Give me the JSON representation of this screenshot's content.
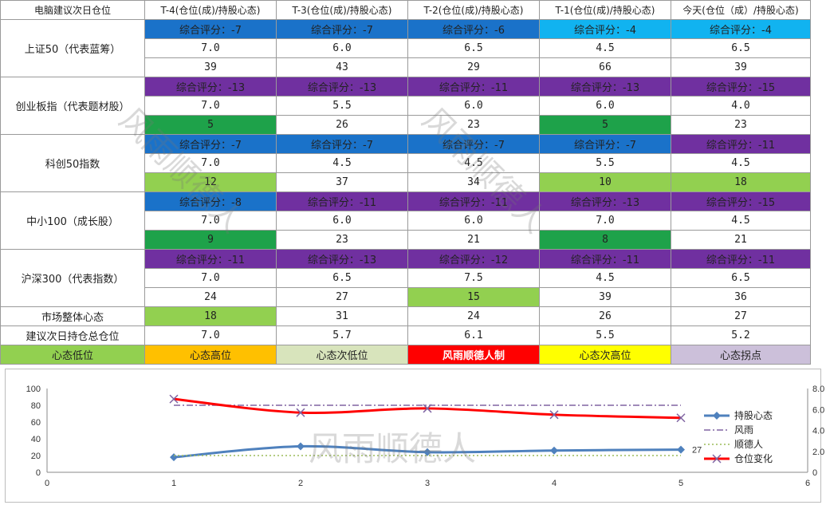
{
  "table": {
    "headers": [
      "电脑建议次日仓位",
      "T-4(仓位(成)/持股心态)",
      "T-3(仓位(成)/持股心态)",
      "T-2(仓位(成)/持股心态)",
      "T-1(仓位(成)/持股心态)",
      "今天(仓位（成）/持股心态)"
    ],
    "indices": [
      {
        "name": "上证50（代表蓝筹）",
        "scores": [
          "综合评分：-7",
          "综合评分：-7",
          "综合评分：-6",
          "综合评分：-4",
          "综合评分：-4"
        ],
        "score_colors": [
          "#1a72c9",
          "#1a72c9",
          "#1a72c9",
          "#11b3f0",
          "#11b3f0"
        ],
        "positions": [
          "7.0",
          "6.0",
          "6.5",
          "4.5",
          "6.5"
        ],
        "mood": [
          "39",
          "43",
          "29",
          "66",
          "39"
        ],
        "mood_colors": [
          "",
          "",
          "",
          "",
          ""
        ]
      },
      {
        "name": "创业板指（代表题材股）",
        "scores": [
          "综合评分：-13",
          "综合评分：-13",
          "综合评分：-11",
          "综合评分：-13",
          "综合评分：-15"
        ],
        "score_colors": [
          "#7030a0",
          "#7030a0",
          "#7030a0",
          "#7030a0",
          "#7030a0"
        ],
        "positions": [
          "7.0",
          "5.5",
          "6.0",
          "6.0",
          "4.0"
        ],
        "mood": [
          "5",
          "26",
          "23",
          "5",
          "23"
        ],
        "mood_colors": [
          "#1ea24a",
          "",
          "",
          "#1ea24a",
          ""
        ]
      },
      {
        "name": "科创50指数",
        "scores": [
          "综合评分：-7",
          "综合评分：-7",
          "综合评分：-7",
          "综合评分：-7",
          "综合评分：-11"
        ],
        "score_colors": [
          "#1a72c9",
          "#1a72c9",
          "#1a72c9",
          "#1a72c9",
          "#7030a0"
        ],
        "positions": [
          "7.0",
          "4.5",
          "4.5",
          "5.5",
          "4.5"
        ],
        "mood": [
          "12",
          "37",
          "34",
          "10",
          "18"
        ],
        "mood_colors": [
          "#92d050",
          "",
          "",
          "#92d050",
          "#92d050"
        ]
      },
      {
        "name": "中小100（成长股）",
        "scores": [
          "综合评分：-8",
          "综合评分：-11",
          "综合评分：-11",
          "综合评分：-13",
          "综合评分：-15"
        ],
        "score_colors": [
          "#1a72c9",
          "#7030a0",
          "#7030a0",
          "#7030a0",
          "#7030a0"
        ],
        "positions": [
          "7.0",
          "6.0",
          "6.0",
          "7.0",
          "4.5"
        ],
        "mood": [
          "9",
          "23",
          "21",
          "8",
          "21"
        ],
        "mood_colors": [
          "#1ea24a",
          "",
          "",
          "#1ea24a",
          ""
        ]
      },
      {
        "name": "沪深300（代表指数）",
        "scores": [
          "综合评分：-11",
          "综合评分：-13",
          "综合评分：-12",
          "综合评分：-11",
          "综合评分：-11"
        ],
        "score_colors": [
          "#7030a0",
          "#7030a0",
          "#7030a0",
          "#7030a0",
          "#7030a0"
        ],
        "positions": [
          "7.0",
          "6.5",
          "7.5",
          "4.5",
          "6.5"
        ],
        "mood": [
          "24",
          "27",
          "15",
          "39",
          "36"
        ],
        "mood_colors": [
          "",
          "",
          "#92d050",
          "",
          ""
        ]
      }
    ],
    "market_mood": {
      "label": "市场整体心态",
      "values": [
        "18",
        "31",
        "24",
        "26",
        "27"
      ],
      "colors": [
        "#92d050",
        "",
        "",
        "",
        ""
      ]
    },
    "suggested": {
      "label": "建议次日持仓总仓位",
      "values": [
        "7.0",
        "5.7",
        "6.1",
        "5.5",
        "5.2"
      ]
    },
    "legend": [
      {
        "label": "心态低位",
        "color": "#92d050"
      },
      {
        "label": "心态高位",
        "color": "#ffc000"
      },
      {
        "label": "心态次低位",
        "color": "#d8e4bc"
      },
      {
        "label": "风雨顺德人制",
        "color": "#ff0000"
      },
      {
        "label": "心态次高位",
        "color": "#ffff00"
      },
      {
        "label": "心态拐点",
        "color": "#ccc0da"
      }
    ]
  },
  "watermarks": [
    "风雨顺德人",
    "风雨顺德人",
    "风雨顺德人"
  ],
  "chart_data": {
    "type": "line",
    "x": [
      1,
      2,
      3,
      4,
      5
    ],
    "xlim": [
      0,
      6
    ],
    "ylim": [
      0,
      100
    ],
    "y2lim": [
      0,
      8
    ],
    "y_ticks": [
      "0",
      "20",
      "40",
      "60",
      "80",
      "100"
    ],
    "y2_ticks": [
      "0",
      "2.0",
      "4.0",
      "6.0",
      "8.0"
    ],
    "x_ticks": [
      "0",
      "1",
      "2",
      "3",
      "4",
      "5",
      "6"
    ],
    "series": [
      {
        "name": "持股心态",
        "axis": "left",
        "values": [
          18,
          31,
          24,
          26,
          27
        ],
        "color": "#4f81bd",
        "last_label": "27"
      },
      {
        "name": "风雨",
        "axis": "left",
        "values": [
          80,
          80,
          80,
          80,
          80
        ],
        "color": "#8064a2"
      },
      {
        "name": "顺德人",
        "axis": "left",
        "values": [
          20,
          20,
          20,
          20,
          20
        ],
        "color": "#9bbb59"
      },
      {
        "name": "仓位变化",
        "axis": "right",
        "values": [
          7.0,
          5.7,
          6.1,
          5.5,
          5.2
        ],
        "color": "#ff0000"
      }
    ],
    "legend_position": "right"
  }
}
